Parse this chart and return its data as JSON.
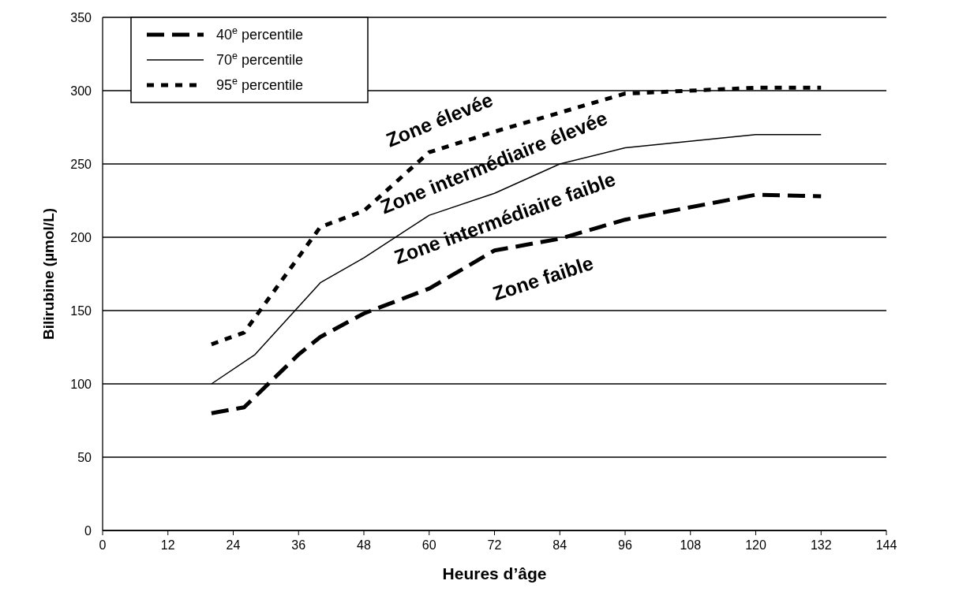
{
  "chart_data": {
    "type": "line",
    "xlabel": "Heures d’âge",
    "ylabel": "Bilirubine (µmol/L)",
    "xlim": [
      0,
      144
    ],
    "xticks": [
      0,
      12,
      24,
      36,
      48,
      60,
      72,
      84,
      96,
      108,
      120,
      132,
      144
    ],
    "ylim": [
      0,
      350
    ],
    "yticks": [
      0,
      50,
      100,
      150,
      200,
      250,
      300,
      350
    ],
    "grid": "y",
    "legend": "top left",
    "series": [
      {
        "name": "40$^{e}$ percentile",
        "color": "#000000",
        "line_style": "dashed",
        "x": [
          20,
          26,
          36,
          40,
          48,
          60,
          72,
          78,
          84,
          96,
          120,
          132
        ],
        "values": [
          80,
          84,
          120,
          132,
          148,
          165,
          191,
          195,
          199,
          212,
          229,
          228
        ]
      },
      {
        "name": "70$^{e}$ percentile",
        "color": "#000000",
        "line_style": "solid",
        "x": [
          20,
          28,
          40,
          48,
          60,
          72,
          84,
          96,
          120,
          132
        ],
        "values": [
          100,
          120,
          169,
          186,
          215,
          230,
          250,
          261,
          270,
          270
        ]
      },
      {
        "name": "95$^{e}$ percentile",
        "color": "#000000",
        "line_style": "dotted",
        "x": [
          20,
          26,
          40,
          48,
          60,
          72,
          84,
          96,
          120,
          132
        ],
        "values": [
          127,
          135,
          207,
          218,
          258,
          272,
          285,
          298,
          302,
          302
        ]
      }
    ],
    "annotations": [
      "Zone élevée",
      "Zone intermédiaire élevée",
      "Zone intermédiaire faible",
      "Zone faible"
    ]
  }
}
